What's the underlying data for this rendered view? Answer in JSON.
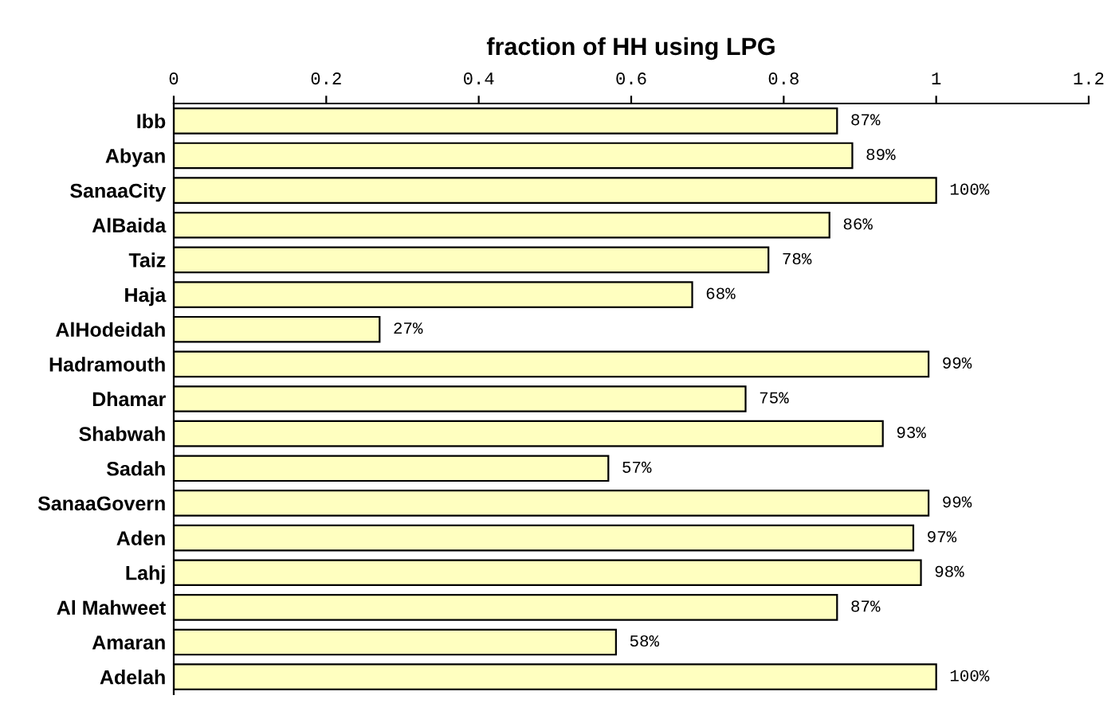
{
  "chart_data": {
    "type": "bar",
    "orientation": "horizontal",
    "title": "fraction of HH using LPG",
    "categories": [
      "Ibb",
      "Abyan",
      "SanaaCity",
      "AlBaida",
      "Taiz",
      "Haja",
      "AlHodeidah",
      "Hadramouth",
      "Dhamar",
      "Shabwah",
      "Sadah",
      "SanaaGovern",
      "Aden",
      "Lahj",
      "Al Mahweet",
      "Amaran",
      "Adelah"
    ],
    "values": [
      0.87,
      0.89,
      1.0,
      0.86,
      0.78,
      0.68,
      0.27,
      0.99,
      0.75,
      0.93,
      0.57,
      0.99,
      0.97,
      0.98,
      0.87,
      0.58,
      1.0
    ],
    "value_labels": [
      "87%",
      "89%",
      "100%",
      "86%",
      "78%",
      "68%",
      "27%",
      "99%",
      "75%",
      "93%",
      "57%",
      "99%",
      "97%",
      "98%",
      "87%",
      "58%",
      "100%"
    ],
    "color": "#ffffc0",
    "xlim": [
      0,
      1.2
    ],
    "xticks": [
      0,
      0.2,
      0.4,
      0.6,
      0.8,
      1,
      1.2
    ],
    "grid": false,
    "legend": false
  }
}
